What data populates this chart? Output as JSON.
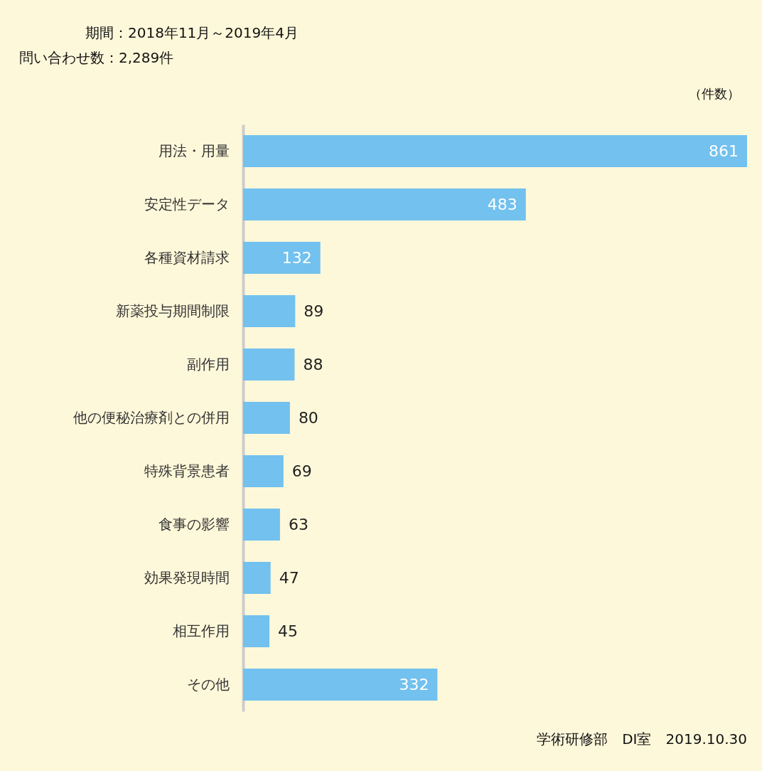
{
  "chart_data": {
    "type": "bar",
    "orientation": "horizontal",
    "title": "期間：2018年11月～2019年4月",
    "subtitle": "問い合わせ数：2,289件",
    "xlabel": "（件数）",
    "annotations": [
      "学術研修部　DI室　2019.10.30"
    ],
    "categories": [
      "用法・用量",
      "安定性データ",
      "各種資材請求",
      "新薬投与期間制限",
      "副作用",
      "他の便秘治療剤との併用",
      "特殊背景患者",
      "食事の影響",
      "効果発現時間",
      "相互作用",
      "その他"
    ],
    "values": [
      861,
      483,
      132,
      89,
      88,
      80,
      69,
      63,
      47,
      45,
      332
    ],
    "color": "#72c1ee",
    "data_labels": true
  }
}
